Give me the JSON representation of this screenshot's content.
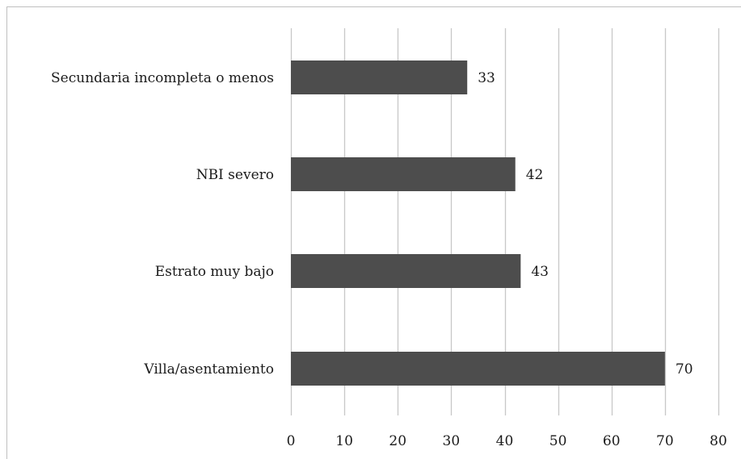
{
  "chart_data": {
    "type": "bar",
    "orientation": "horizontal",
    "categories": [
      "Secundaria incompleta o menos",
      "NBI severo",
      "Estrato muy bajo",
      "Villa/asentamiento"
    ],
    "values": [
      33,
      42,
      43,
      70
    ],
    "data_labels": [
      "33",
      "42",
      "43",
      "70"
    ],
    "xlim": [
      0,
      80
    ],
    "x_ticks": [
      0,
      10,
      20,
      30,
      40,
      50,
      60,
      70,
      80
    ],
    "x_tick_labels": [
      "0",
      "10",
      "20",
      "30",
      "40",
      "50",
      "60",
      "70",
      "80"
    ],
    "grid": "vertical",
    "legend": "none",
    "title": "",
    "xlabel": "",
    "ylabel": "",
    "bar_color": "#4d4d4d",
    "grid_color": "#c8c8c8",
    "border_color": "#bfbfbf"
  }
}
